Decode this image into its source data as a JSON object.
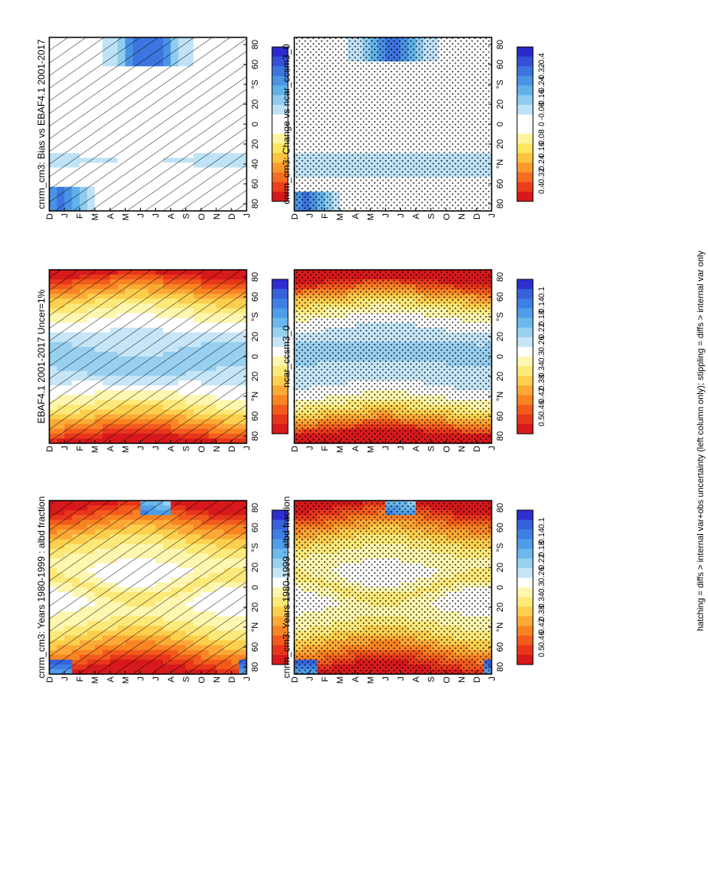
{
  "footer_note": "hatching = diffs > internal var+obs uncertainty (left column only); stippling = diffs > internal var only",
  "palette": {
    "abs": [
      "#d7191c",
      "#e8361a",
      "#f25b1c",
      "#f98423",
      "#fca937",
      "#fdcf4e",
      "#fde97a",
      "#fff7b0",
      "#ffffff",
      "#c6e6f7",
      "#98d0f0",
      "#6cb8ec",
      "#4f9de8",
      "#3f7fe4",
      "#3861dc",
      "#2f2fd0"
    ],
    "diff": [
      "#d7191c",
      "#ee3e1d",
      "#f66c22",
      "#fb9a2c",
      "#fdc43f",
      "#fde65f",
      "#fff59c",
      "#ffffff",
      "#ffffff",
      "#bfe3f6",
      "#8fccef",
      "#62b2ea",
      "#4a94e6",
      "#3d74e0",
      "#3550d8",
      "#2a2acb"
    ]
  },
  "chart_data": [
    {
      "type": "heatmap",
      "id": "p1",
      "title": "cnrm_cm3: Years 1980-1999 : albd fraction",
      "x_ticks": [
        "D",
        "J",
        "F",
        "M",
        "A",
        "M",
        "J",
        "J",
        "A",
        "S",
        "O",
        "N",
        "D",
        "J"
      ],
      "y_ticks": [
        "80",
        "60",
        "40",
        "20",
        "0",
        "20",
        "40",
        "60",
        "80"
      ],
      "y_tick_labels": [
        "80",
        "60",
        "°N",
        "20",
        "0",
        "20",
        "°S",
        "60",
        "80"
      ],
      "colorbar": [
        "0.5",
        "0.46",
        "0.42",
        "0.38",
        "0.34",
        "0.3",
        "0.26",
        "0.22",
        "0.18",
        "0.14",
        "0.1"
      ],
      "pattern": "hatch",
      "scale": "abs",
      "model": "cnrm"
    },
    {
      "type": "heatmap",
      "id": "p2",
      "title": "cnrm_cm3: Years 1980-1999 : albd fraction",
      "x_ticks": [
        "D",
        "J",
        "F",
        "M",
        "A",
        "M",
        "J",
        "J",
        "A",
        "S",
        "O",
        "N",
        "D",
        "J"
      ],
      "y_tick_labels": [
        "80",
        "60",
        "°N",
        "20",
        "0",
        "20",
        "°S",
        "60",
        "80"
      ],
      "colorbar": [
        "0.5",
        "0.46",
        "0.42",
        "0.38",
        "0.34",
        "0.3",
        "0.26",
        "0.22",
        "0.18",
        "0.14",
        "0.1"
      ],
      "pattern": "stipple",
      "scale": "abs",
      "model": "cnrm"
    },
    {
      "type": "heatmap",
      "id": "p3",
      "title": "EBAF4.1 2001-2017 Uncer=1%",
      "x_ticks": [
        "D",
        "J",
        "F",
        "M",
        "A",
        "M",
        "J",
        "J",
        "A",
        "S",
        "O",
        "N",
        "D",
        "J"
      ],
      "y_tick_labels": [
        "80",
        "60",
        "°N",
        "20",
        "0",
        "20",
        "°S",
        "60",
        "80"
      ],
      "colorbar": [
        "0.5",
        "0.46",
        "0.42",
        "0.38",
        "0.34",
        "0.3",
        "0.26",
        "0.22",
        "0.18",
        "0.14",
        "0.1"
      ],
      "pattern": "hatch",
      "scale": "abs",
      "model": "obs"
    },
    {
      "type": "heatmap",
      "id": "p4",
      "title": "ncar_ccsm3_0",
      "x_ticks": [
        "D",
        "J",
        "F",
        "M",
        "A",
        "M",
        "J",
        "J",
        "A",
        "S",
        "O",
        "N",
        "D",
        "J"
      ],
      "y_tick_labels": [
        "80",
        "60",
        "°N",
        "20",
        "0",
        "20",
        "°S",
        "60",
        "80"
      ],
      "colorbar": [
        "0.5",
        "0.46",
        "0.42",
        "0.38",
        "0.34",
        "0.3",
        "0.26",
        "0.22",
        "0.18",
        "0.14",
        "0.1"
      ],
      "pattern": "stipple",
      "scale": "abs",
      "model": "ncar"
    },
    {
      "type": "heatmap",
      "id": "p5",
      "title": "cnrm_cm3: Bias vs EBAF4.1 2001-2017",
      "x_ticks": [
        "D",
        "J",
        "F",
        "M",
        "A",
        "M",
        "J",
        "J",
        "A",
        "S",
        "O",
        "N",
        "D",
        "J"
      ],
      "y_tick_labels": [
        "80",
        "60",
        "40",
        "20",
        "0",
        "20",
        "°S",
        "60",
        "80"
      ],
      "colorbar": [
        "0.4",
        "0.32",
        "0.24",
        "0.16",
        "0.08",
        "0",
        "-0.08",
        "-0.16",
        "-0.24",
        "-0.32",
        "-0.4"
      ],
      "pattern": "hatch",
      "scale": "diff",
      "model": "bias"
    },
    {
      "type": "heatmap",
      "id": "p6",
      "title": "cnrm_cm3: Change vs ncar_ccsm3_0",
      "x_ticks": [
        "D",
        "J",
        "F",
        "M",
        "A",
        "M",
        "J",
        "J",
        "A",
        "S",
        "O",
        "N",
        "D",
        "J"
      ],
      "y_tick_labels": [
        "80",
        "60",
        "°N",
        "20",
        "0",
        "20",
        "°S",
        "60",
        "80"
      ],
      "colorbar": [
        "0.4",
        "0.32",
        "0.24",
        "0.16",
        "0.08",
        "0",
        "-0.08",
        "-0.16",
        "-0.24",
        "-0.32",
        "-0.4"
      ],
      "pattern": "stipple",
      "scale": "diff",
      "model": "change"
    }
  ]
}
